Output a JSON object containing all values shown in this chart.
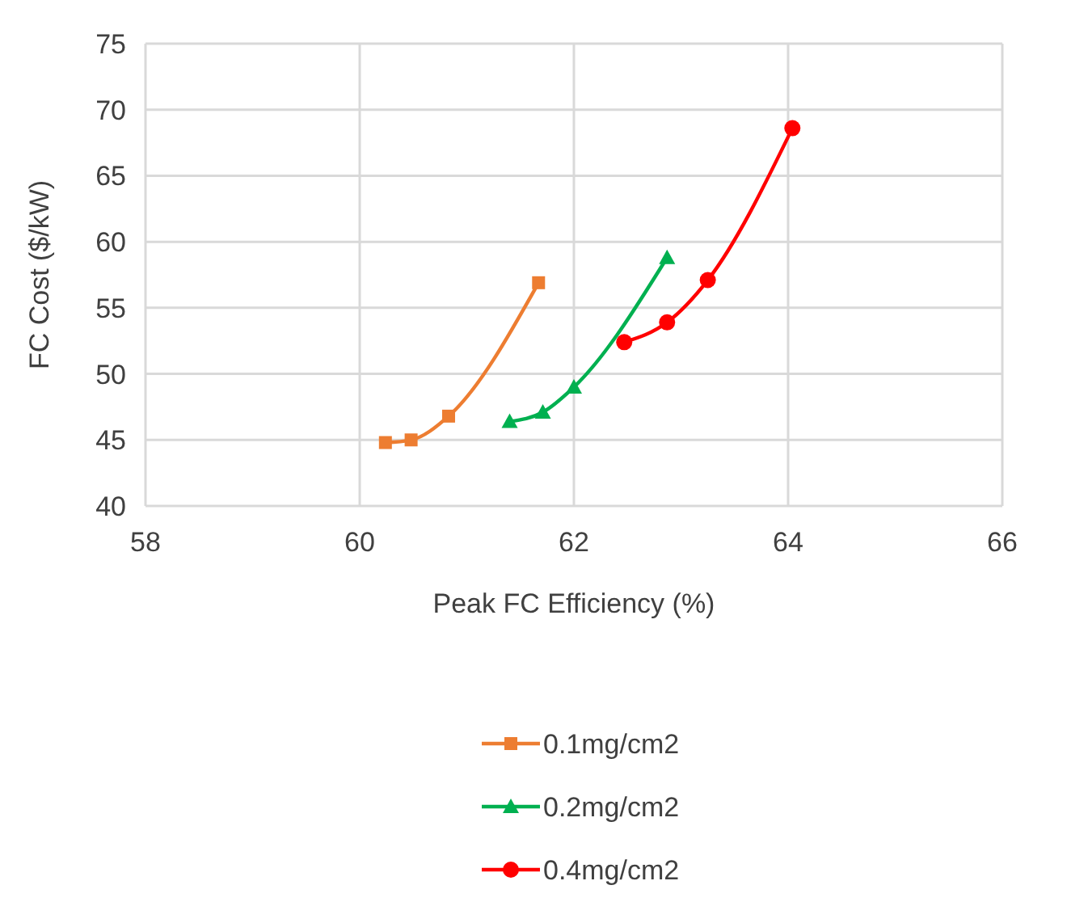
{
  "chart_data": {
    "type": "line",
    "xlabel": "Peak FC Efficiency (%)",
    "ylabel": "FC Cost ($/kW)",
    "xlim": [
      58,
      66
    ],
    "xticks": [
      58,
      60,
      62,
      64,
      66
    ],
    "ylim": [
      40,
      75
    ],
    "yticks": [
      40,
      45,
      50,
      55,
      60,
      65,
      70,
      75
    ],
    "grid": true,
    "legend": "bottom",
    "line_style": "solid",
    "series": [
      {
        "name": "0.1mg/cm2",
        "color": "#ed7d31",
        "marker": "square",
        "x": [
          60.24,
          60.48,
          60.83,
          61.67
        ],
        "values": [
          44.8,
          45.0,
          46.8,
          56.9
        ]
      },
      {
        "name": "0.2mg/cm2",
        "color": "#00b050",
        "marker": "triangle",
        "x": [
          61.4,
          61.71,
          62.0,
          62.87
        ],
        "values": [
          46.4,
          47.1,
          49.0,
          58.8
        ]
      },
      {
        "name": "0.4mg/cm2",
        "color": "#ff0000",
        "marker": "circle",
        "x": [
          62.47,
          62.87,
          63.25,
          64.04
        ],
        "values": [
          52.4,
          53.9,
          57.1,
          68.6
        ]
      }
    ]
  }
}
